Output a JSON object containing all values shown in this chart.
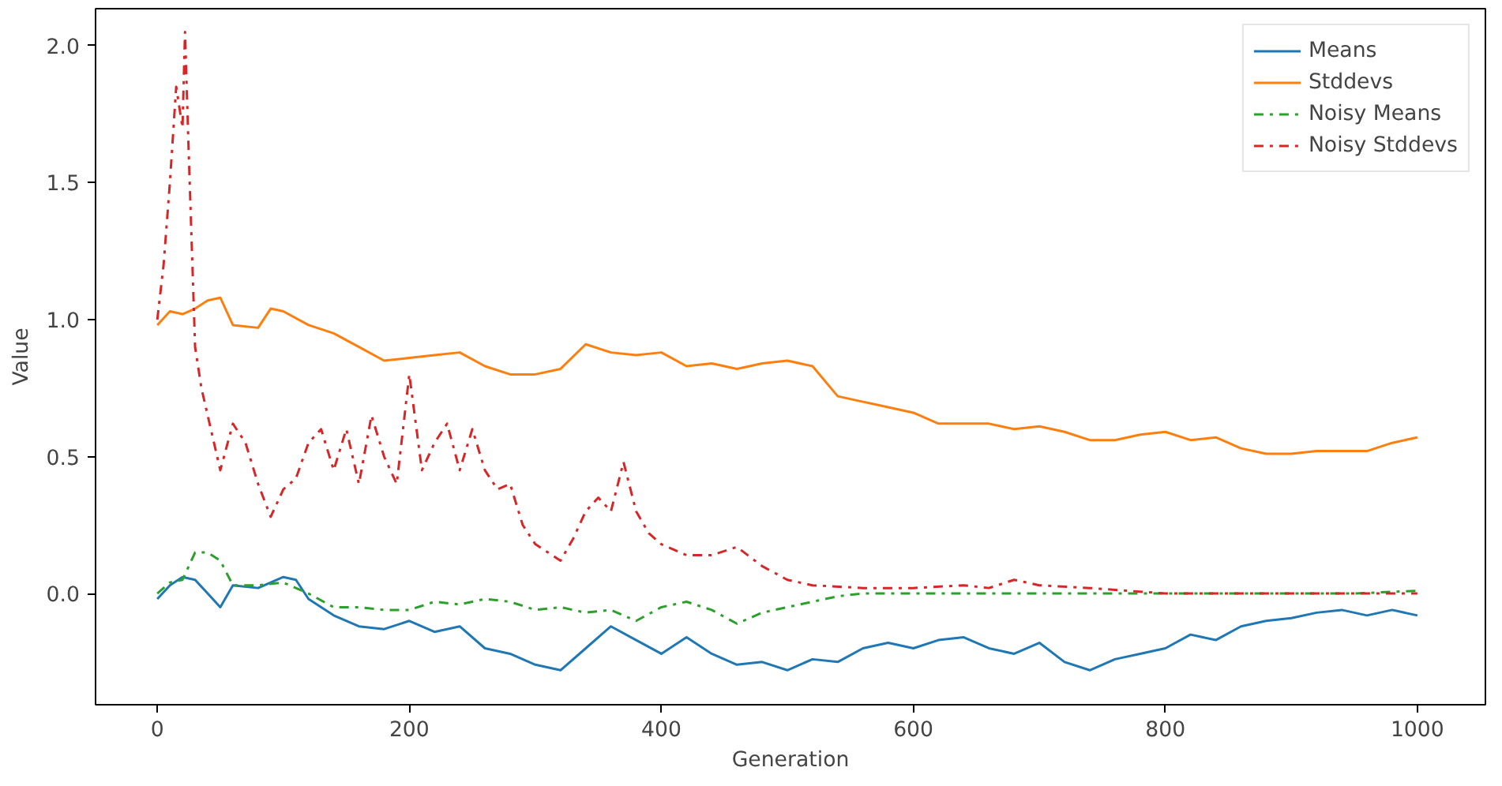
{
  "chart_data": {
    "type": "line",
    "xlabel": "Generation",
    "ylabel": "Value",
    "xlim": [
      -49,
      1054
    ],
    "ylim": [
      -0.406,
      2.135
    ],
    "xticks": [
      0,
      200,
      400,
      600,
      800,
      1000
    ],
    "yticks": [
      {
        "value": 0,
        "label": "0.0"
      },
      {
        "value": 0.5,
        "label": "0.5"
      },
      {
        "value": 1,
        "label": "1.0"
      },
      {
        "value": 1.5,
        "label": "1.5"
      },
      {
        "value": 2,
        "label": "2.0"
      }
    ],
    "grid": false,
    "legend": "top right",
    "series": [
      {
        "name": "Means",
        "color": "#1f77b4",
        "line_style": "solid",
        "x": [
          0,
          10,
          20,
          30,
          40,
          50,
          60,
          80,
          100,
          110,
          120,
          140,
          160,
          180,
          200,
          220,
          240,
          260,
          280,
          300,
          320,
          340,
          360,
          380,
          400,
          420,
          440,
          460,
          480,
          500,
          520,
          540,
          560,
          580,
          600,
          620,
          640,
          660,
          680,
          700,
          720,
          740,
          760,
          780,
          800,
          820,
          840,
          860,
          880,
          900,
          920,
          940,
          960,
          980,
          1000
        ],
        "values": [
          -0.02,
          0.03,
          0.06,
          0.05,
          0.0,
          -0.05,
          0.03,
          0.02,
          0.06,
          0.05,
          -0.02,
          -0.08,
          -0.12,
          -0.13,
          -0.1,
          -0.14,
          -0.12,
          -0.2,
          -0.22,
          -0.26,
          -0.28,
          -0.2,
          -0.12,
          -0.17,
          -0.22,
          -0.16,
          -0.22,
          -0.26,
          -0.25,
          -0.28,
          -0.24,
          -0.25,
          -0.2,
          -0.18,
          -0.2,
          -0.17,
          -0.16,
          -0.2,
          -0.22,
          -0.18,
          -0.25,
          -0.28,
          -0.24,
          -0.22,
          -0.2,
          -0.15,
          -0.17,
          -0.12,
          -0.1,
          -0.09,
          -0.07,
          -0.06,
          -0.08,
          -0.06,
          -0.08
        ]
      },
      {
        "name": "Stddevs",
        "color": "#ff7f0e",
        "line_style": "solid",
        "x": [
          0,
          10,
          20,
          30,
          40,
          50,
          60,
          80,
          90,
          100,
          120,
          140,
          160,
          180,
          200,
          220,
          240,
          260,
          280,
          300,
          320,
          340,
          360,
          380,
          400,
          420,
          440,
          460,
          480,
          500,
          520,
          540,
          560,
          580,
          600,
          620,
          640,
          660,
          680,
          700,
          720,
          740,
          760,
          780,
          800,
          820,
          840,
          860,
          880,
          900,
          920,
          940,
          960,
          980,
          1000
        ],
        "values": [
          0.98,
          1.03,
          1.02,
          1.04,
          1.07,
          1.08,
          0.98,
          0.97,
          1.04,
          1.03,
          0.98,
          0.95,
          0.9,
          0.85,
          0.86,
          0.87,
          0.88,
          0.83,
          0.8,
          0.8,
          0.82,
          0.91,
          0.88,
          0.87,
          0.88,
          0.83,
          0.84,
          0.82,
          0.84,
          0.85,
          0.83,
          0.72,
          0.7,
          0.68,
          0.66,
          0.62,
          0.62,
          0.62,
          0.6,
          0.61,
          0.59,
          0.56,
          0.56,
          0.58,
          0.59,
          0.56,
          0.57,
          0.53,
          0.51,
          0.51,
          0.52,
          0.52,
          0.52,
          0.55,
          0.57
        ]
      },
      {
        "name": "Noisy Means",
        "color": "#2ca02c",
        "line_style": "dashdot",
        "x": [
          0,
          10,
          20,
          30,
          40,
          50,
          60,
          80,
          100,
          120,
          140,
          160,
          180,
          200,
          220,
          240,
          260,
          280,
          300,
          320,
          340,
          360,
          380,
          400,
          420,
          440,
          460,
          480,
          500,
          520,
          540,
          560,
          600,
          650,
          700,
          750,
          800,
          850,
          900,
          950,
          1000
        ],
        "values": [
          0.0,
          0.04,
          0.05,
          0.15,
          0.15,
          0.12,
          0.03,
          0.03,
          0.04,
          0.0,
          -0.05,
          -0.05,
          -0.06,
          -0.06,
          -0.03,
          -0.04,
          -0.02,
          -0.03,
          -0.06,
          -0.05,
          -0.07,
          -0.06,
          -0.1,
          -0.05,
          -0.03,
          -0.06,
          -0.11,
          -0.07,
          -0.05,
          -0.03,
          -0.01,
          0.0,
          0.0,
          0.0,
          0.0,
          0.0,
          0.0,
          0.0,
          0.0,
          0.0,
          0.01
        ]
      },
      {
        "name": "Noisy Stddevs",
        "color": "#d62728",
        "line_style": "dashdot",
        "x": [
          0,
          5,
          10,
          15,
          20,
          22,
          25,
          30,
          35,
          40,
          50,
          60,
          70,
          80,
          90,
          100,
          110,
          120,
          130,
          140,
          150,
          160,
          170,
          180,
          190,
          200,
          210,
          220,
          230,
          240,
          250,
          260,
          270,
          280,
          290,
          300,
          310,
          320,
          330,
          340,
          350,
          360,
          370,
          380,
          390,
          400,
          420,
          440,
          460,
          480,
          500,
          520,
          560,
          600,
          640,
          660,
          680,
          700,
          740,
          800,
          900,
          1000
        ],
        "values": [
          1.0,
          1.2,
          1.5,
          1.85,
          1.7,
          2.05,
          1.6,
          0.9,
          0.75,
          0.65,
          0.45,
          0.62,
          0.55,
          0.4,
          0.28,
          0.38,
          0.42,
          0.55,
          0.6,
          0.45,
          0.6,
          0.4,
          0.65,
          0.5,
          0.4,
          0.8,
          0.45,
          0.55,
          0.62,
          0.45,
          0.6,
          0.45,
          0.38,
          0.4,
          0.25,
          0.18,
          0.15,
          0.12,
          0.2,
          0.3,
          0.35,
          0.3,
          0.48,
          0.3,
          0.22,
          0.18,
          0.14,
          0.14,
          0.17,
          0.1,
          0.05,
          0.03,
          0.02,
          0.02,
          0.03,
          0.02,
          0.05,
          0.03,
          0.02,
          0.0,
          0.0,
          0.0
        ]
      }
    ]
  }
}
